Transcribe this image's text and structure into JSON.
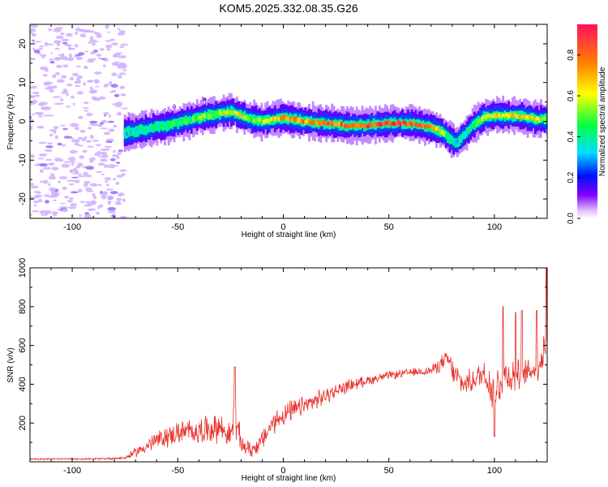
{
  "title": "KOM5.2025.332.08.35.G26",
  "chart_data": [
    {
      "type": "heatmap",
      "xlabel": "Height of straight line (km)",
      "ylabel": "Frequency (Hz)",
      "xlim": [
        -120,
        125
      ],
      "ylim": [
        -25,
        25
      ],
      "xticks": [
        -100,
        -50,
        0,
        50,
        100
      ],
      "xtick_labels": [
        "-100",
        "-50",
        "0",
        "50",
        "100"
      ],
      "yticks": [
        -20,
        -10,
        0,
        10,
        20
      ],
      "ytick_labels": [
        "-20",
        "-10",
        "0",
        "10",
        "20"
      ],
      "colorbar": {
        "label": "Normalized spectral amplitude",
        "range": [
          0,
          0.95
        ],
        "ticks": [
          0.0,
          0.2,
          0.4,
          0.6,
          0.8
        ],
        "tick_labels": [
          "0.0",
          "0.2",
          "0.4",
          "0.6",
          "0.8"
        ]
      },
      "ridge": {
        "x": [
          -75,
          -70,
          -60,
          -50,
          -40,
          -30,
          -25,
          -20,
          -15,
          -10,
          0,
          10,
          20,
          30,
          40,
          50,
          60,
          70,
          75,
          78,
          82,
          85,
          90,
          95,
          100,
          110,
          120,
          125
        ],
        "y": [
          -3,
          -2.5,
          -1.5,
          -0.5,
          1,
          2,
          2.5,
          1.5,
          0.5,
          0,
          1,
          0,
          -0.5,
          -1,
          -1,
          -0.5,
          -0.5,
          -1.5,
          -2.5,
          -4,
          -5.5,
          -4,
          -1,
          1,
          1.5,
          1.5,
          0.5,
          0.5
        ],
        "amplitude": [
          0.3,
          0.35,
          0.4,
          0.45,
          0.5,
          0.55,
          0.6,
          0.6,
          0.5,
          0.55,
          0.7,
          0.75,
          0.8,
          0.8,
          0.85,
          0.85,
          0.85,
          0.8,
          0.6,
          0.4,
          0.3,
          0.35,
          0.45,
          0.55,
          0.6,
          0.65,
          0.6,
          0.55
        ]
      },
      "noise_region": {
        "x": [
          -120,
          -75
        ],
        "y": [
          -25,
          25
        ],
        "amplitude": 0.05
      }
    },
    {
      "type": "line",
      "xlabel": "Height of straight line (km)",
      "ylabel": "SNR (v/v)",
      "xlim": [
        -120,
        125
      ],
      "ylim": [
        0,
        1000
      ],
      "xticks": [
        -100,
        -50,
        0,
        50,
        100
      ],
      "xtick_labels": [
        "-100",
        "-50",
        "0",
        "50",
        "100"
      ],
      "yticks": [
        200,
        400,
        600,
        800,
        1000
      ],
      "ytick_labels": [
        "200",
        "400",
        "600",
        "800",
        "1000"
      ],
      "color": "#e8302b",
      "envelope": {
        "x": [
          -120,
          -90,
          -75,
          -70,
          -60,
          -50,
          -40,
          -30,
          -25,
          -23,
          -20,
          -15,
          -10,
          -5,
          0,
          10,
          20,
          30,
          40,
          50,
          60,
          70,
          78,
          80,
          85,
          90,
          95,
          100,
          105,
          110,
          115,
          120,
          123,
          125
        ],
        "y": [
          15,
          15,
          20,
          50,
          110,
          150,
          160,
          180,
          130,
          230,
          90,
          60,
          110,
          200,
          240,
          290,
          340,
          390,
          420,
          445,
          460,
          470,
          530,
          470,
          400,
          420,
          460,
          360,
          450,
          440,
          460,
          480,
          560,
          700
        ],
        "noise": [
          5,
          5,
          10,
          30,
          60,
          70,
          80,
          90,
          70,
          150,
          60,
          50,
          60,
          70,
          70,
          60,
          50,
          40,
          30,
          25,
          25,
          30,
          60,
          80,
          70,
          70,
          90,
          150,
          120,
          100,
          80,
          70,
          150,
          200
        ]
      },
      "spikes": [
        {
          "x": -23,
          "y": 490
        },
        {
          "x": 104,
          "y": 800
        },
        {
          "x": 110,
          "y": 770
        },
        {
          "x": 113,
          "y": 780
        },
        {
          "x": 120,
          "y": 780
        },
        {
          "x": 124.5,
          "y": 1000
        },
        {
          "x": 100,
          "y": 130
        }
      ]
    }
  ]
}
